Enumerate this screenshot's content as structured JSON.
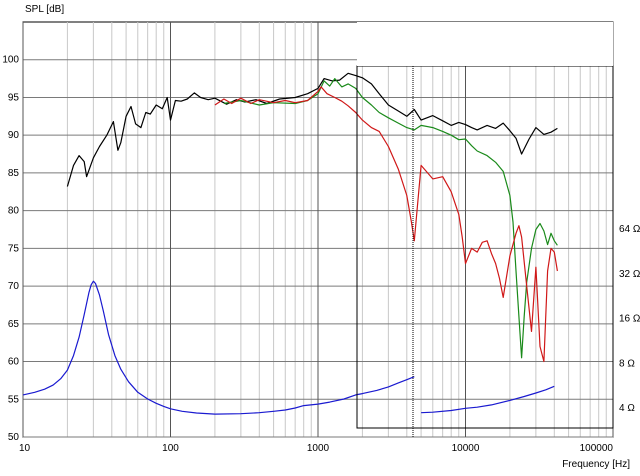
{
  "chart_data": {
    "type": "line",
    "title": "",
    "ylabel": "SPL [dB]",
    "xlabel": "Frequency [Hz]",
    "x_scale": "log",
    "xlim": [
      10,
      100000
    ],
    "ylim": [
      50,
      105
    ],
    "grid": true,
    "x_ticks": [
      {
        "value": 10,
        "label": "10"
      },
      {
        "value": 100,
        "label": "100"
      },
      {
        "value": 1000,
        "label": "1000"
      },
      {
        "value": 10000,
        "label": "10000"
      },
      {
        "value": 100000,
        "label": "100000"
      }
    ],
    "y_ticks": [
      {
        "value": 50,
        "label": "50"
      },
      {
        "value": 55,
        "label": "55"
      },
      {
        "value": 60,
        "label": "60"
      },
      {
        "value": 65,
        "label": "65"
      },
      {
        "value": 70,
        "label": "70"
      },
      {
        "value": 75,
        "label": "75"
      },
      {
        "value": 80,
        "label": "80"
      },
      {
        "value": 85,
        "label": "85"
      },
      {
        "value": 90,
        "label": "90"
      },
      {
        "value": 95,
        "label": "95"
      },
      {
        "value": 100,
        "label": "100"
      }
    ],
    "right_axis": {
      "unit": "ohm",
      "scale": "log",
      "ticks": [
        {
          "value": 4,
          "label": "4 Ω"
        },
        {
          "value": 8,
          "label": "8 Ω"
        },
        {
          "value": 16,
          "label": "16 Ω"
        },
        {
          "value": 32,
          "label": "32 Ω"
        },
        {
          "value": 64,
          "label": "64 Ω"
        }
      ]
    },
    "series": [
      {
        "color": "#000000",
        "axis": "spl",
        "points": [
          [
            20,
            83.2
          ],
          [
            22,
            86.0
          ],
          [
            24,
            87.3
          ],
          [
            26,
            86.5
          ],
          [
            27,
            84.5
          ],
          [
            30,
            87.0
          ],
          [
            33,
            88.5
          ],
          [
            37,
            90.0
          ],
          [
            41,
            91.8
          ],
          [
            44,
            88.0
          ],
          [
            46,
            89.0
          ],
          [
            50,
            92.5
          ],
          [
            54,
            93.8
          ],
          [
            58,
            91.5
          ],
          [
            63,
            91.0
          ],
          [
            68,
            93.0
          ],
          [
            73,
            92.8
          ],
          [
            80,
            94.0
          ],
          [
            88,
            93.5
          ],
          [
            95,
            95.0
          ],
          [
            100,
            92.0
          ],
          [
            108,
            94.6
          ],
          [
            118,
            94.5
          ],
          [
            130,
            94.8
          ],
          [
            145,
            95.6
          ],
          [
            160,
            95.0
          ],
          [
            180,
            94.7
          ],
          [
            200,
            94.9
          ],
          [
            240,
            94.1
          ],
          [
            280,
            94.7
          ],
          [
            320,
            94.4
          ],
          [
            380,
            94.7
          ],
          [
            450,
            94.2
          ],
          [
            550,
            94.8
          ],
          [
            700,
            95.0
          ],
          [
            850,
            95.5
          ],
          [
            1000,
            96.2
          ],
          [
            1100,
            97.5
          ],
          [
            1250,
            97.2
          ],
          [
            1400,
            97.3
          ],
          [
            1600,
            98.2
          ],
          [
            1800,
            97.9
          ],
          [
            2000,
            97.6
          ],
          [
            2300,
            96.8
          ],
          [
            2600,
            95.5
          ],
          [
            3000,
            94.0
          ],
          [
            3500,
            93.2
          ],
          [
            4000,
            92.5
          ],
          [
            4500,
            93.4
          ],
          [
            5000,
            92.0
          ],
          [
            6000,
            92.6
          ],
          [
            7000,
            91.9
          ],
          [
            8000,
            91.3
          ],
          [
            9000,
            91.7
          ],
          [
            10000,
            91.4
          ],
          [
            11000,
            91.0
          ],
          [
            12000,
            90.7
          ],
          [
            14000,
            91.3
          ],
          [
            16000,
            90.9
          ],
          [
            18000,
            91.6
          ],
          [
            20000,
            90.6
          ],
          [
            22000,
            89.6
          ],
          [
            24000,
            87.5
          ],
          [
            27000,
            89.5
          ],
          [
            30000,
            91.0
          ],
          [
            34000,
            90.1
          ],
          [
            38000,
            90.4
          ],
          [
            42000,
            90.9
          ]
        ]
      },
      {
        "color": "#1a8a1a",
        "axis": "spl",
        "points": [
          [
            230,
            94.2
          ],
          [
            300,
            94.6
          ],
          [
            400,
            94.0
          ],
          [
            500,
            94.3
          ],
          [
            700,
            94.2
          ],
          [
            850,
            94.6
          ],
          [
            1000,
            95.5
          ],
          [
            1100,
            97.2
          ],
          [
            1200,
            96.5
          ],
          [
            1300,
            97.5
          ],
          [
            1450,
            96.4
          ],
          [
            1600,
            96.8
          ],
          [
            1800,
            96.2
          ],
          [
            2000,
            95.0
          ],
          [
            2300,
            94.0
          ],
          [
            2600,
            93.0
          ],
          [
            3000,
            92.3
          ],
          [
            3500,
            91.6
          ],
          [
            4000,
            91.0
          ],
          [
            4500,
            90.7
          ],
          [
            5000,
            91.3
          ],
          [
            6000,
            91.0
          ],
          [
            7000,
            90.5
          ],
          [
            8000,
            90.0
          ],
          [
            9000,
            89.4
          ],
          [
            10000,
            89.5
          ],
          [
            11000,
            88.6
          ],
          [
            12000,
            87.9
          ],
          [
            14000,
            87.3
          ],
          [
            16000,
            86.4
          ],
          [
            18000,
            85.2
          ],
          [
            20000,
            82.0
          ],
          [
            21000,
            78.5
          ],
          [
            22000,
            72.0
          ],
          [
            23000,
            66.0
          ],
          [
            24000,
            60.5
          ],
          [
            25000,
            66.0
          ],
          [
            26000,
            70.5
          ],
          [
            28000,
            75.0
          ],
          [
            30000,
            77.5
          ],
          [
            32000,
            78.3
          ],
          [
            34000,
            77.3
          ],
          [
            36000,
            75.5
          ],
          [
            38000,
            77.0
          ],
          [
            40000,
            76.0
          ],
          [
            42000,
            75.4
          ]
        ]
      },
      {
        "color": "#d01818",
        "axis": "spl",
        "points": [
          [
            200,
            94.0
          ],
          [
            230,
            94.8
          ],
          [
            260,
            94.2
          ],
          [
            300,
            94.9
          ],
          [
            350,
            94.2
          ],
          [
            400,
            94.7
          ],
          [
            500,
            94.3
          ],
          [
            600,
            94.6
          ],
          [
            700,
            94.3
          ],
          [
            850,
            94.6
          ],
          [
            1000,
            95.8
          ],
          [
            1050,
            96.4
          ],
          [
            1150,
            95.5
          ],
          [
            1300,
            95.0
          ],
          [
            1450,
            94.5
          ],
          [
            1600,
            93.9
          ],
          [
            1800,
            93.0
          ],
          [
            2000,
            92.0
          ],
          [
            2300,
            91.0
          ],
          [
            2600,
            90.5
          ],
          [
            3000,
            88.5
          ],
          [
            3500,
            85.5
          ],
          [
            4000,
            82.0
          ],
          [
            4300,
            78.5
          ],
          [
            4500,
            76.0
          ],
          [
            5000,
            86.0
          ],
          [
            6000,
            84.2
          ],
          [
            7000,
            84.5
          ],
          [
            8000,
            82.5
          ],
          [
            9000,
            79.5
          ],
          [
            9500,
            76.5
          ],
          [
            10000,
            73.0
          ],
          [
            11000,
            75.0
          ],
          [
            12000,
            74.5
          ],
          [
            13000,
            75.8
          ],
          [
            14000,
            76.0
          ],
          [
            15000,
            74.3
          ],
          [
            16000,
            73.0
          ],
          [
            17000,
            71.0
          ],
          [
            18000,
            68.5
          ],
          [
            20000,
            74.0
          ],
          [
            22000,
            77.0
          ],
          [
            23000,
            78.0
          ],
          [
            24000,
            76.5
          ],
          [
            26000,
            70.0
          ],
          [
            28000,
            64.0
          ],
          [
            30000,
            72.5
          ],
          [
            32000,
            62.0
          ],
          [
            34000,
            60.0
          ],
          [
            36000,
            72.0
          ],
          [
            38000,
            75.0
          ],
          [
            40000,
            74.5
          ],
          [
            42000,
            72.0
          ]
        ]
      },
      {
        "color": "#1a1ad0",
        "axis": "impedance",
        "points": [
          [
            10,
            4.9
          ],
          [
            12,
            5.1
          ],
          [
            14,
            5.35
          ],
          [
            16,
            5.7
          ],
          [
            18,
            6.3
          ],
          [
            20,
            7.2
          ],
          [
            22,
            9.0
          ],
          [
            24,
            12.0
          ],
          [
            26,
            17.0
          ],
          [
            28,
            24.0
          ],
          [
            29,
            27.0
          ],
          [
            30,
            28.5
          ],
          [
            31,
            27.5
          ],
          [
            33,
            23.0
          ],
          [
            35,
            18.0
          ],
          [
            38,
            12.5
          ],
          [
            42,
            9.0
          ],
          [
            46,
            7.3
          ],
          [
            52,
            6.0
          ],
          [
            60,
            5.1
          ],
          [
            70,
            4.6
          ],
          [
            80,
            4.3
          ],
          [
            90,
            4.1
          ],
          [
            100,
            3.95
          ],
          [
            120,
            3.8
          ],
          [
            150,
            3.7
          ],
          [
            200,
            3.64
          ],
          [
            300,
            3.66
          ],
          [
            400,
            3.72
          ],
          [
            500,
            3.8
          ],
          [
            600,
            3.88
          ],
          [
            700,
            4.0
          ],
          [
            800,
            4.15
          ],
          [
            1000,
            4.25
          ],
          [
            1200,
            4.38
          ],
          [
            1500,
            4.6
          ],
          [
            1800,
            4.9
          ],
          [
            2000,
            5.0
          ],
          [
            2500,
            5.25
          ],
          [
            3000,
            5.55
          ],
          [
            3500,
            5.9
          ],
          [
            4000,
            6.2
          ],
          [
            4500,
            6.5
          ],
          [
            5000,
            3.72
          ],
          [
            6000,
            3.75
          ],
          [
            8000,
            3.85
          ],
          [
            10000,
            3.98
          ],
          [
            12000,
            4.05
          ],
          [
            15000,
            4.2
          ],
          [
            20000,
            4.5
          ],
          [
            25000,
            4.78
          ],
          [
            30000,
            5.05
          ],
          [
            35000,
            5.3
          ],
          [
            40000,
            5.6
          ]
        ]
      }
    ]
  }
}
